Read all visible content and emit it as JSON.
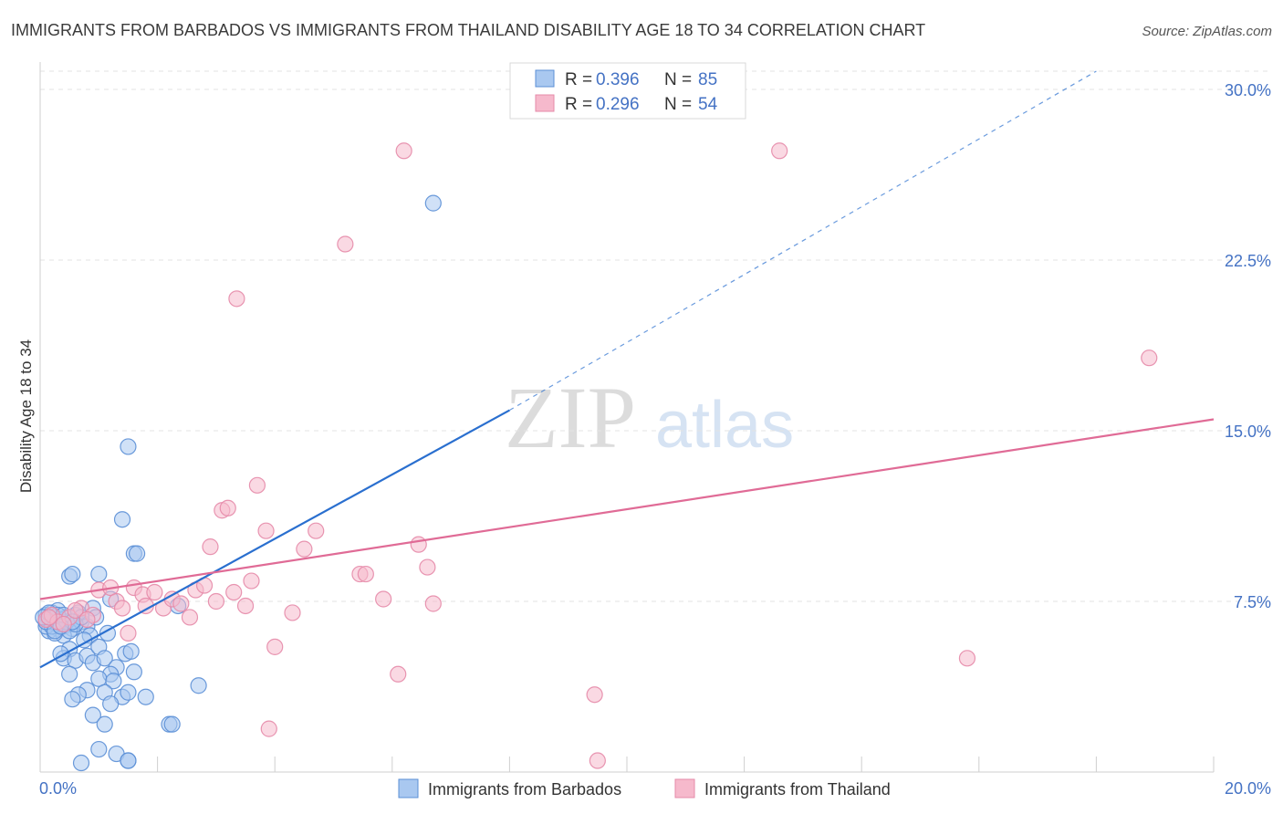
{
  "title": "IMMIGRANTS FROM BARBADOS VS IMMIGRANTS FROM THAILAND DISABILITY AGE 18 TO 34 CORRELATION CHART",
  "source": "Source: ZipAtlas.com",
  "watermark": {
    "zip": "ZIP",
    "atlas": "atlas"
  },
  "legend": {
    "barbados": {
      "r_label": "R = ",
      "r_value": "0.396",
      "n_label": "N = ",
      "n_value": "85"
    },
    "thailand": {
      "r_label": "R = ",
      "r_value": "0.296",
      "n_label": "N = ",
      "n_value": "54"
    }
  },
  "colors": {
    "barbados_fill": "#a9c8f0",
    "barbados_stroke": "#5b8fd6",
    "barbados_line": "#2a6fcf",
    "thailand_fill": "#f6b9cc",
    "thailand_stroke": "#e58aa8",
    "thailand_line": "#e06b96",
    "grid": "#e3e3e3",
    "axis_text": "#4472c4"
  },
  "chart_data": {
    "type": "scatter",
    "title": "IMMIGRANTS FROM BARBADOS VS IMMIGRANTS FROM THAILAND DISABILITY AGE 18 TO 34 CORRELATION CHART",
    "xlabel": "",
    "ylabel": "Disability Age 18 to 34",
    "xlim": [
      0,
      20
    ],
    "ylim": [
      0,
      30.8
    ],
    "x_tick_labels": [
      "0.0%",
      "20.0%"
    ],
    "y_ticks": [
      7.5,
      15.0,
      22.5,
      30.0
    ],
    "y_tick_labels": [
      "7.5%",
      "15.0%",
      "22.5%",
      "30.0%"
    ],
    "series": [
      {
        "name": "Immigrants from Barbados",
        "r": 0.396,
        "n": 85,
        "trend": {
          "x0": 0.0,
          "y0": 4.6,
          "x1": 8.0,
          "y1": 15.9,
          "dashed_to_x": 18.0,
          "dashed_to_y": 30.8
        },
        "points": [
          [
            0.1,
            6.9
          ],
          [
            0.15,
            6.7
          ],
          [
            0.2,
            6.5
          ],
          [
            0.25,
            6.8
          ],
          [
            0.3,
            6.3
          ],
          [
            0.35,
            6.6
          ],
          [
            0.4,
            6.4
          ],
          [
            0.2,
            7.0
          ],
          [
            0.3,
            7.1
          ],
          [
            0.15,
            6.2
          ],
          [
            0.5,
            6.5
          ],
          [
            0.45,
            6.8
          ],
          [
            0.6,
            6.9
          ],
          [
            0.55,
            6.3
          ],
          [
            0.4,
            6.0
          ],
          [
            0.25,
            6.1
          ],
          [
            0.5,
            6.2
          ],
          [
            0.35,
            6.7
          ],
          [
            0.7,
            6.6
          ],
          [
            0.8,
            6.4
          ],
          [
            0.65,
            7.0
          ],
          [
            0.9,
            7.2
          ],
          [
            0.95,
            6.8
          ],
          [
            1.2,
            7.6
          ],
          [
            1.15,
            6.1
          ],
          [
            0.85,
            6.0
          ],
          [
            0.75,
            5.8
          ],
          [
            0.5,
            5.4
          ],
          [
            0.4,
            5.0
          ],
          [
            0.35,
            5.2
          ],
          [
            0.6,
            4.9
          ],
          [
            0.8,
            5.1
          ],
          [
            0.9,
            4.8
          ],
          [
            1.0,
            5.5
          ],
          [
            1.1,
            5.0
          ],
          [
            1.3,
            4.6
          ],
          [
            1.45,
            5.2
          ],
          [
            1.55,
            5.3
          ],
          [
            1.2,
            4.3
          ],
          [
            1.0,
            4.1
          ],
          [
            1.25,
            4.0
          ],
          [
            0.5,
            4.3
          ],
          [
            0.8,
            3.6
          ],
          [
            0.65,
            3.4
          ],
          [
            0.55,
            3.2
          ],
          [
            1.1,
            3.5
          ],
          [
            1.4,
            3.3
          ],
          [
            1.5,
            3.5
          ],
          [
            1.8,
            3.3
          ],
          [
            1.2,
            3.0
          ],
          [
            0.9,
            2.5
          ],
          [
            1.1,
            2.1
          ],
          [
            2.2,
            2.1
          ],
          [
            2.25,
            2.1
          ],
          [
            2.7,
            3.8
          ],
          [
            0.7,
            0.4
          ],
          [
            1.0,
            1.0
          ],
          [
            1.3,
            0.8
          ],
          [
            1.5,
            0.5
          ],
          [
            1.5,
            0.5
          ],
          [
            1.6,
            4.4
          ],
          [
            2.35,
            7.3
          ],
          [
            1.6,
            9.6
          ],
          [
            1.65,
            9.6
          ],
          [
            1.4,
            11.1
          ],
          [
            1.5,
            14.3
          ],
          [
            0.5,
            8.6
          ],
          [
            0.55,
            8.7
          ],
          [
            1.0,
            8.7
          ],
          [
            6.7,
            25.0
          ],
          [
            0.1,
            6.4
          ],
          [
            0.2,
            6.6
          ],
          [
            0.3,
            6.5
          ],
          [
            0.45,
            6.6
          ],
          [
            0.6,
            6.5
          ],
          [
            0.7,
            6.8
          ],
          [
            0.2,
            6.4
          ],
          [
            0.3,
            6.9
          ],
          [
            0.1,
            6.6
          ],
          [
            0.15,
            7.0
          ],
          [
            0.4,
            6.9
          ],
          [
            0.55,
            6.6
          ],
          [
            0.05,
            6.8
          ],
          [
            0.25,
            6.2
          ],
          [
            0.35,
            6.4
          ]
        ]
      },
      {
        "name": "Immigrants from Thailand",
        "r": 0.296,
        "n": 54,
        "trend": {
          "x0": 0.0,
          "y0": 7.6,
          "x1": 20.0,
          "y1": 15.5
        },
        "points": [
          [
            0.1,
            6.7
          ],
          [
            0.2,
            6.9
          ],
          [
            0.3,
            6.6
          ],
          [
            0.5,
            6.8
          ],
          [
            0.7,
            7.2
          ],
          [
            0.9,
            6.9
          ],
          [
            1.0,
            8.0
          ],
          [
            1.2,
            8.1
          ],
          [
            1.3,
            7.5
          ],
          [
            1.4,
            7.2
          ],
          [
            1.5,
            6.1
          ],
          [
            1.6,
            8.1
          ],
          [
            1.75,
            7.8
          ],
          [
            1.8,
            7.3
          ],
          [
            1.95,
            7.9
          ],
          [
            2.1,
            7.2
          ],
          [
            2.25,
            7.6
          ],
          [
            2.4,
            7.4
          ],
          [
            2.55,
            6.8
          ],
          [
            2.65,
            8.0
          ],
          [
            2.8,
            8.2
          ],
          [
            2.9,
            9.9
          ],
          [
            3.0,
            7.5
          ],
          [
            3.1,
            11.5
          ],
          [
            3.2,
            11.6
          ],
          [
            3.3,
            7.9
          ],
          [
            3.5,
            7.3
          ],
          [
            3.6,
            8.4
          ],
          [
            3.7,
            12.6
          ],
          [
            3.85,
            10.6
          ],
          [
            4.0,
            5.5
          ],
          [
            4.3,
            7.0
          ],
          [
            4.5,
            9.8
          ],
          [
            4.7,
            10.6
          ],
          [
            5.2,
            23.2
          ],
          [
            5.45,
            8.7
          ],
          [
            5.55,
            8.7
          ],
          [
            5.85,
            7.6
          ],
          [
            6.1,
            4.3
          ],
          [
            6.2,
            27.3
          ],
          [
            6.45,
            10.0
          ],
          [
            6.6,
            9.0
          ],
          [
            6.7,
            7.4
          ],
          [
            3.35,
            20.8
          ],
          [
            9.45,
            3.4
          ],
          [
            9.5,
            0.5
          ],
          [
            12.6,
            27.3
          ],
          [
            15.8,
            5.0
          ],
          [
            18.9,
            18.2
          ],
          [
            3.9,
            1.9
          ],
          [
            0.4,
            6.5
          ],
          [
            0.6,
            7.1
          ],
          [
            0.8,
            6.7
          ],
          [
            0.15,
            6.8
          ]
        ]
      }
    ]
  },
  "bottom_legend": {
    "barbados_label": "Immigrants from Barbados",
    "thailand_label": "Immigrants from Thailand"
  }
}
